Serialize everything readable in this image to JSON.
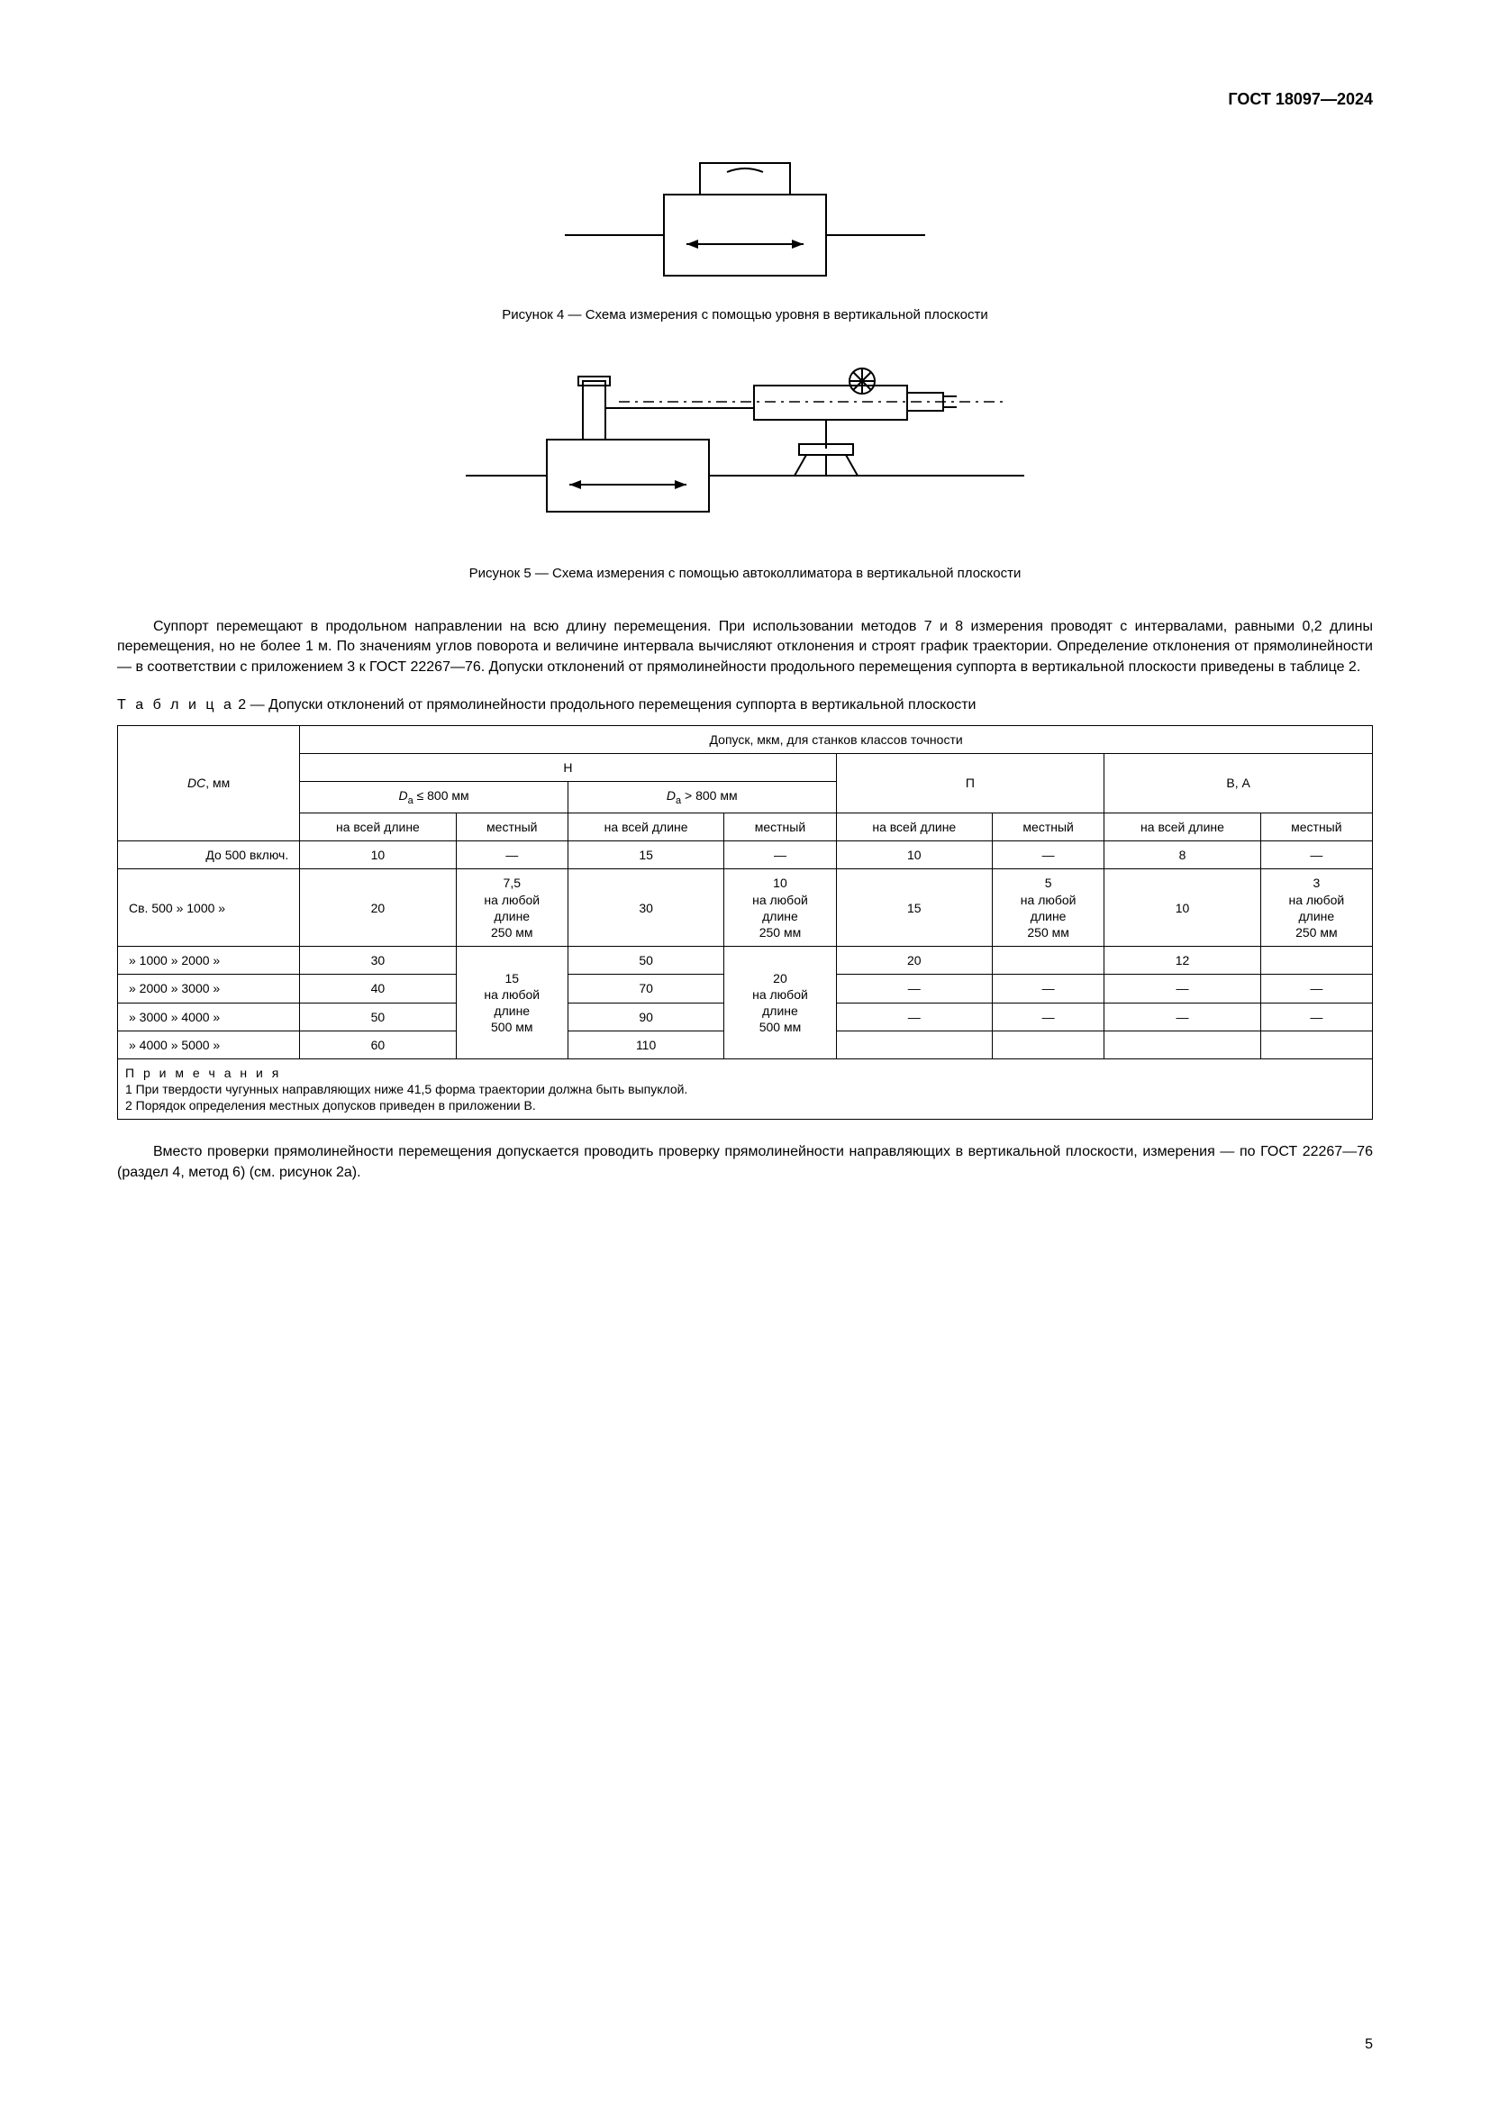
{
  "doc_header": "ГОСТ 18097—2024",
  "figure4": {
    "caption": "Рисунок 4 — Схема измерения с помощью уровня в вертикальной плоскости"
  },
  "figure5": {
    "caption": "Рисунок 5 — Схема измерения с помощью автоколлиматора в вертикальной плоскости"
  },
  "body_paragraph": "Суппорт перемещают в продольном направлении на всю длину перемещения. При использовании методов 7 и 8 измерения проводят с интервалами, равными 0,2 длины перемещения, но не более 1 м. По значениям углов поворота и величине интервала вычисляют отклонения и строят график траектории. Определение отклонения от прямолинейности — в соответствии с приложением 3 к ГОСТ 22267—76. Допуски отклонений от прямолинейности продольного перемещения суппорта в вертикальной плоскости приведены в таблице 2.",
  "table2": {
    "caption_prefix": "Т а б л и ц а",
    "caption_rest": " 2 — Допуски отклонений от прямолинейности продольного перемещения суппорта в вертикальной плоскости",
    "header_main1": "DC, мм",
    "header_main2": "Допуск, мкм, для станков классов точности",
    "header_H": "Н",
    "header_P": "П",
    "header_BA": "В, А",
    "header_Da_le": "Dₐ ≤ 800 мм",
    "header_Da_gt": "Dₐ > 800 мм",
    "header_full": "на всей длине",
    "header_local": "местный",
    "rows": [
      {
        "dc": "До 500 включ.",
        "h1f": "10",
        "h1l": "—",
        "h2f": "15",
        "h2l": "—",
        "pf": "10",
        "pl": "—",
        "baf": "8",
        "bal": "—"
      },
      {
        "dc": "Св. 500 » 1000 »",
        "h1f": "20",
        "h1l": "7,5\nна любой\nдлине\n250 мм",
        "h2f": "30",
        "h2l": "10\nна любой\nдлине\n250 мм",
        "pf": "15",
        "pl": "5\nна любой\nдлине\n250 мм",
        "baf": "10",
        "bal": "3\nна любой\nдлине\n250 мм"
      },
      {
        "dc": "» 1000 » 2000 »",
        "h1f": "30",
        "h1l": "15\nна любой\nдлине\n500 мм",
        "h2f": "50",
        "h2l": "20\nна любой\nдлине\n500 мм",
        "pf": "20",
        "pl": "",
        "baf": "12",
        "bal": ""
      },
      {
        "dc": "» 2000 » 3000 »",
        "h1f": "40",
        "h1l": "",
        "h2f": "70",
        "h2l": "",
        "pf": "—",
        "pl": "—",
        "baf": "—",
        "bal": "—"
      },
      {
        "dc": "» 3000 » 4000 »",
        "h1f": "50",
        "h1l": "",
        "h2f": "90",
        "h2l": "",
        "pf": "—",
        "pl": "—",
        "baf": "—",
        "bal": "—"
      },
      {
        "dc": "» 4000 » 5000 »",
        "h1f": "60",
        "h1l": "",
        "h2f": "110",
        "h2l": "",
        "pf": "",
        "pl": "",
        "baf": "",
        "bal": ""
      }
    ],
    "notes_title": "П р и м е ч а н и я",
    "note1": "1  При твердости чугунных направляющих ниже 41,5 форма траектории должна быть выпуклой.",
    "note2": "2  Порядок определения местных допусков приведен в приложении В."
  },
  "final_paragraph": "Вместо проверки прямолинейности перемещения допускается проводить проверку прямолинейности направляющих в вертикальной плоскости, измерения — по ГОСТ 22267—76 (раздел 4, метод 6) (см. рисунок 2а).",
  "page_number": "5"
}
